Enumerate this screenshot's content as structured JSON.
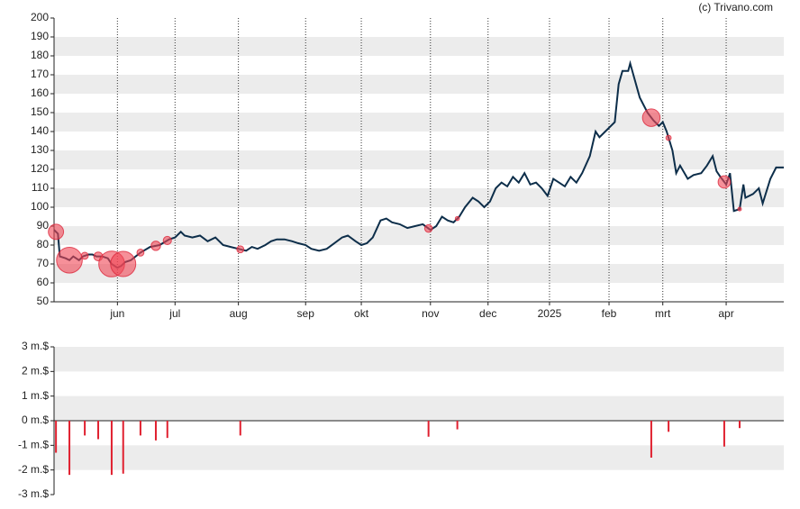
{
  "credit": "(c) Trivano.com",
  "chart_data": [
    {
      "type": "line",
      "color": "#0d2e4a",
      "bands": true,
      "grid": true,
      "xlim": [
        0,
        380
      ],
      "xticks": [
        {
          "value": 33,
          "label": "jun"
        },
        {
          "value": 63,
          "label": "jul"
        },
        {
          "value": 96,
          "label": "aug"
        },
        {
          "value": 131,
          "label": "sep"
        },
        {
          "value": 160,
          "label": "okt"
        },
        {
          "value": 196,
          "label": "nov"
        },
        {
          "value": 226,
          "label": "dec"
        },
        {
          "value": 258,
          "label": "2025"
        },
        {
          "value": 289,
          "label": "feb"
        },
        {
          "value": 317,
          "label": "mrt"
        },
        {
          "value": 350,
          "label": "apr"
        }
      ],
      "ylim": [
        50,
        200
      ],
      "yticks": [
        50,
        60,
        70,
        80,
        90,
        100,
        110,
        120,
        130,
        140,
        150,
        160,
        170,
        180,
        190,
        200
      ],
      "x": [
        0,
        2,
        3,
        6,
        8,
        10,
        13,
        15,
        18,
        20,
        22,
        25,
        28,
        30,
        33,
        35,
        37,
        40,
        45,
        50,
        55,
        60,
        63,
        66,
        68,
        72,
        76,
        80,
        84,
        88,
        92,
        96,
        100,
        103,
        106,
        110,
        113,
        116,
        120,
        124,
        127,
        131,
        134,
        138,
        142,
        146,
        150,
        153,
        157,
        160,
        163,
        166,
        170,
        173,
        176,
        180,
        184,
        188,
        192,
        196,
        199,
        202,
        205,
        208,
        211,
        214,
        218,
        221,
        224,
        227,
        230,
        233,
        236,
        239,
        242,
        245,
        248,
        251,
        254,
        257,
        260,
        263,
        266,
        269,
        272,
        275,
        279,
        282,
        284,
        287,
        290,
        292,
        294,
        296,
        299,
        300,
        305,
        309,
        312,
        315,
        317,
        319,
        322,
        324,
        326,
        330,
        333,
        337,
        340,
        343,
        345,
        347,
        350,
        352,
        354,
        357,
        359,
        360,
        364,
        367,
        369,
        373,
        376,
        380
      ],
      "values": [
        88,
        86,
        74,
        73,
        72,
        74,
        72,
        74,
        75,
        75,
        74,
        74,
        73,
        70,
        68,
        69,
        71,
        72,
        76,
        79,
        80,
        83,
        84,
        87,
        85,
        84,
        85,
        82,
        84,
        80,
        79,
        78,
        77,
        79,
        78,
        80,
        82,
        83,
        83,
        82,
        81,
        80,
        78,
        77,
        78,
        81,
        84,
        85,
        82,
        80,
        81,
        84,
        93,
        94,
        92,
        91,
        89,
        90,
        91,
        88,
        90,
        95,
        93,
        92,
        95,
        100,
        105,
        103,
        100,
        103,
        110,
        113,
        111,
        116,
        113,
        118,
        112,
        113,
        110,
        106,
        115,
        113,
        111,
        116,
        113,
        118,
        127,
        140,
        137,
        140,
        143,
        145,
        165,
        172,
        172,
        176,
        158,
        150,
        146,
        143,
        145,
        140,
        130,
        118,
        122,
        115,
        117,
        118,
        122,
        127,
        119,
        116,
        112,
        118,
        98,
        99,
        112,
        105,
        107,
        110,
        102,
        115,
        121,
        121
      ]
    },
    {
      "type": "bar",
      "color": "#e0202f",
      "bands": true,
      "xlim": [
        0,
        380
      ],
      "ylim": [
        -3,
        3
      ],
      "yticks": [
        {
          "value": 3,
          "label": "3 m.$"
        },
        {
          "value": 2,
          "label": "2 m.$"
        },
        {
          "value": 1,
          "label": "1 m.$"
        },
        {
          "value": 0,
          "label": "0 m.$"
        },
        {
          "value": -1,
          "label": "-1 m.$"
        },
        {
          "value": -2,
          "label": "-2 m.$"
        },
        {
          "value": -3,
          "label": "-3 m.$"
        }
      ],
      "x": [
        1,
        8,
        16,
        23,
        30,
        36,
        45,
        53,
        59,
        97,
        195,
        210,
        311,
        320,
        349,
        357
      ],
      "values": [
        -1.3,
        -2.2,
        -0.6,
        -0.75,
        -2.2,
        -2.15,
        -0.6,
        -0.8,
        -0.7,
        -0.6,
        -0.65,
        -0.35,
        -1.5,
        -0.45,
        -1.05,
        -0.3
      ]
    }
  ]
}
